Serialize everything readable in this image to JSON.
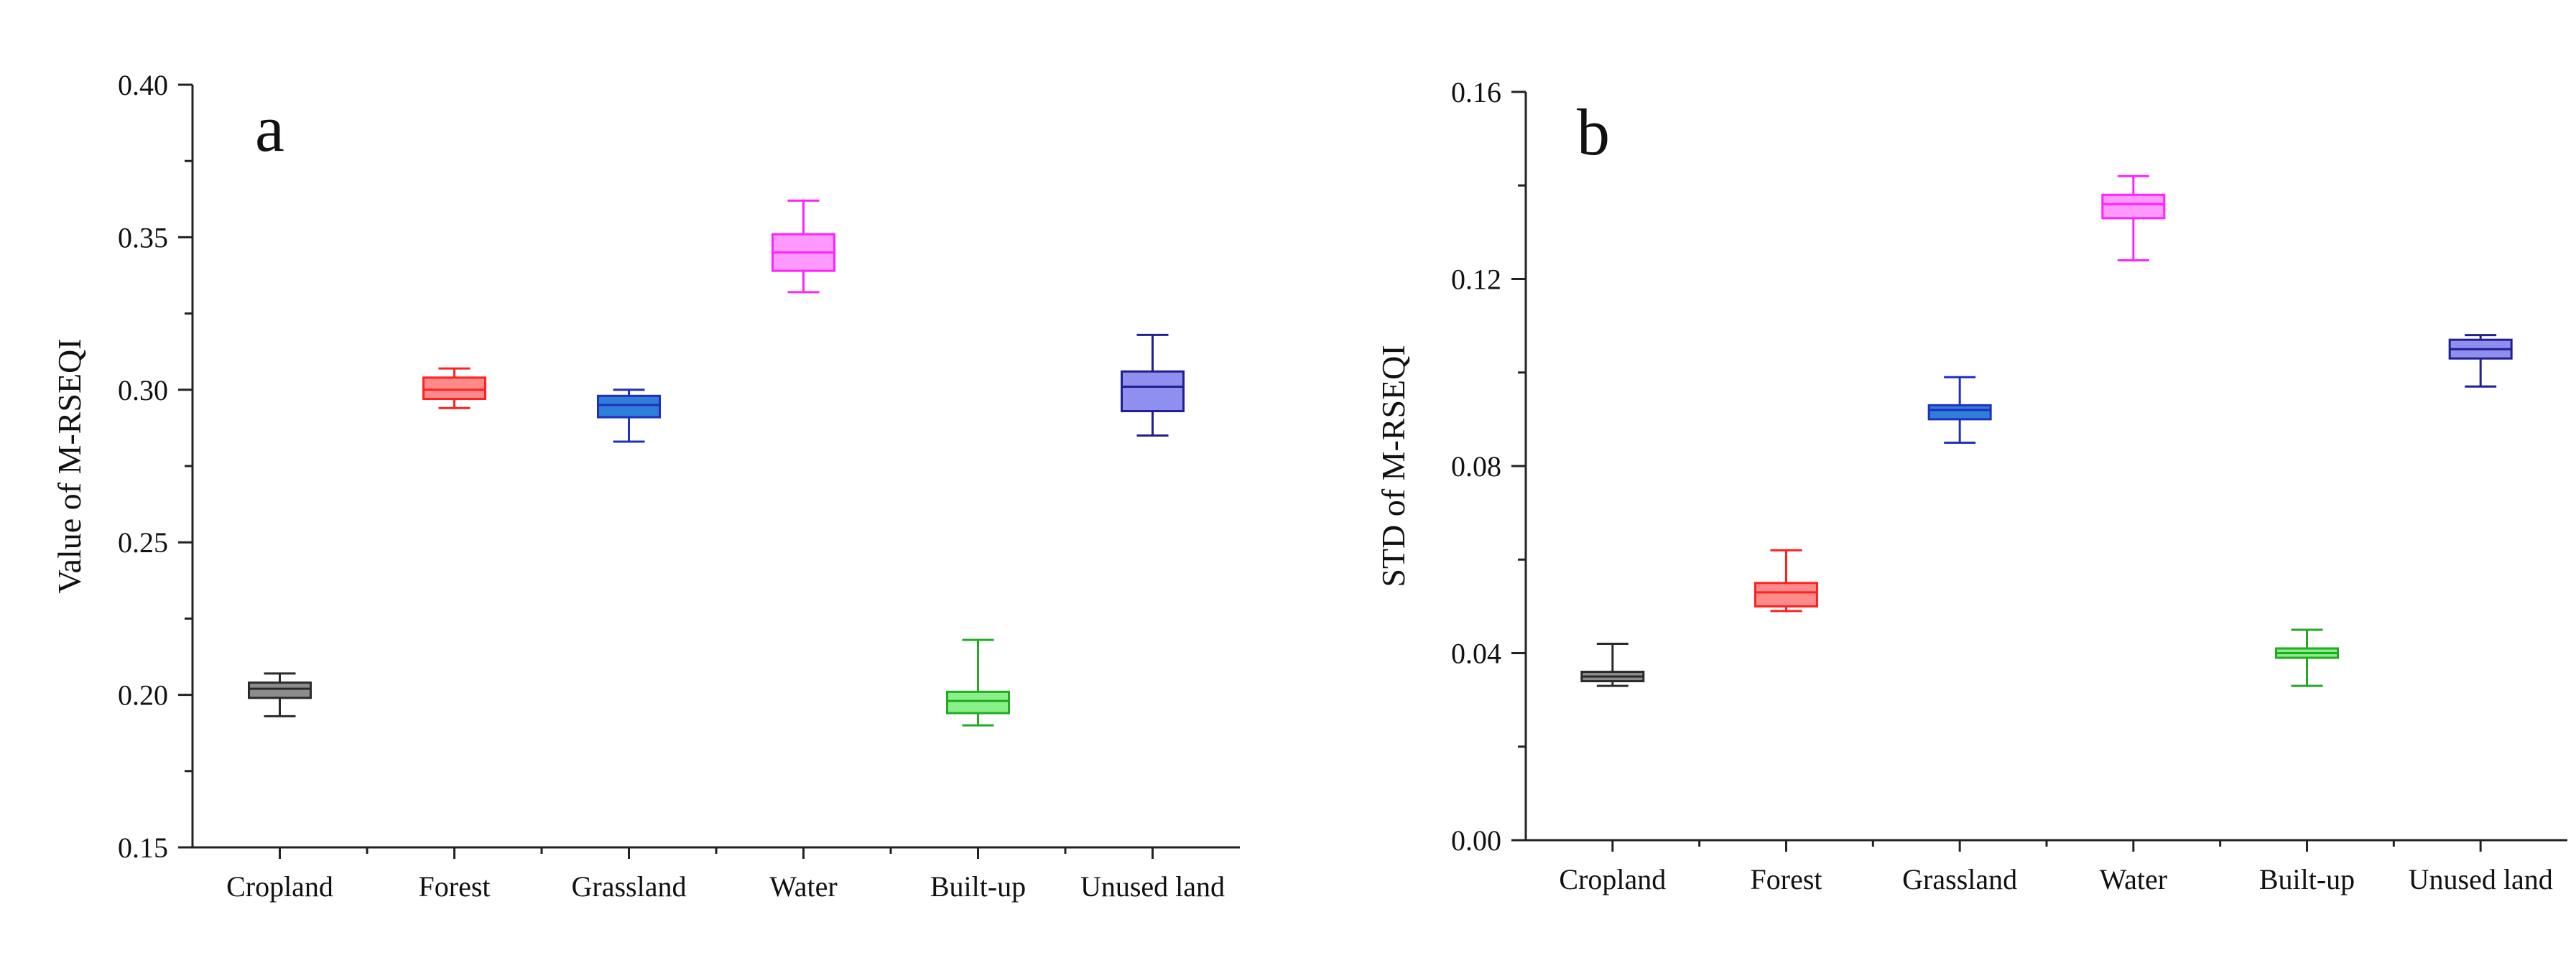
{
  "chart_data": [
    {
      "type": "box",
      "panel_label": "a",
      "ylabel": "Value of M-RSEQI",
      "xlabel": "",
      "ylim": [
        0.15,
        0.4
      ],
      "yticks": [
        0.15,
        0.2,
        0.25,
        0.3,
        0.35,
        0.4
      ],
      "ytick_labels": [
        "0.15",
        "0.20",
        "0.25",
        "0.30",
        "0.35",
        "0.40"
      ],
      "categories": [
        "Cropland",
        "Forest",
        "Grassland",
        "Water",
        "Built-up",
        "Unused land"
      ],
      "boxes": [
        {
          "category": "Cropland",
          "min": 0.193,
          "q1": 0.199,
          "median": 0.202,
          "q3": 0.204,
          "max": 0.207,
          "stroke": "#2a2a2a",
          "fill": "#8c8c8c"
        },
        {
          "category": "Forest",
          "min": 0.294,
          "q1": 0.297,
          "median": 0.3,
          "q3": 0.304,
          "max": 0.307,
          "stroke": "#ff2020",
          "fill": "#ff8a8a"
        },
        {
          "category": "Grassland",
          "min": 0.283,
          "q1": 0.291,
          "median": 0.295,
          "q3": 0.298,
          "max": 0.3,
          "stroke": "#1f2fbf",
          "fill": "#2f7fd8"
        },
        {
          "category": "Water",
          "min": 0.332,
          "q1": 0.339,
          "median": 0.345,
          "q3": 0.351,
          "max": 0.362,
          "stroke": "#ff22ff",
          "fill": "#ff99ff"
        },
        {
          "category": "Built-up",
          "min": 0.19,
          "q1": 0.194,
          "median": 0.198,
          "q3": 0.201,
          "max": 0.218,
          "stroke": "#22aa22",
          "fill": "#88f088"
        },
        {
          "category": "Unused land",
          "min": 0.285,
          "q1": 0.293,
          "median": 0.301,
          "q3": 0.306,
          "max": 0.318,
          "stroke": "#1f1f8f",
          "fill": "#8f8ff0"
        }
      ]
    },
    {
      "type": "box",
      "panel_label": "b",
      "ylabel": "STD of M-RSEQI",
      "xlabel": "",
      "ylim": [
        0.0,
        0.16
      ],
      "yticks": [
        0.0,
        0.04,
        0.08,
        0.12,
        0.16
      ],
      "ytick_labels": [
        "0.00",
        "0.04",
        "0.08",
        "0.12",
        "0.16"
      ],
      "categories": [
        "Cropland",
        "Forest",
        "Grassland",
        "Water",
        "Built-up",
        "Unused land"
      ],
      "boxes": [
        {
          "category": "Cropland",
          "min": 0.033,
          "q1": 0.034,
          "median": 0.035,
          "q3": 0.036,
          "max": 0.042,
          "stroke": "#2a2a2a",
          "fill": "#8c8c8c"
        },
        {
          "category": "Forest",
          "min": 0.049,
          "q1": 0.05,
          "median": 0.053,
          "q3": 0.055,
          "max": 0.062,
          "stroke": "#ff2020",
          "fill": "#ff8a8a"
        },
        {
          "category": "Grassland",
          "min": 0.085,
          "q1": 0.09,
          "median": 0.092,
          "q3": 0.093,
          "max": 0.099,
          "stroke": "#1f2fbf",
          "fill": "#2f7fd8"
        },
        {
          "category": "Water",
          "min": 0.124,
          "q1": 0.133,
          "median": 0.136,
          "q3": 0.138,
          "max": 0.142,
          "stroke": "#ff22ff",
          "fill": "#ff99ff"
        },
        {
          "category": "Built-up",
          "min": 0.033,
          "q1": 0.039,
          "median": 0.04,
          "q3": 0.041,
          "max": 0.045,
          "stroke": "#22aa22",
          "fill": "#88f088"
        },
        {
          "category": "Unused land",
          "min": 0.097,
          "q1": 0.103,
          "median": 0.105,
          "q3": 0.107,
          "max": 0.108,
          "stroke": "#1f1f8f",
          "fill": "#8f8ff0"
        }
      ]
    }
  ]
}
